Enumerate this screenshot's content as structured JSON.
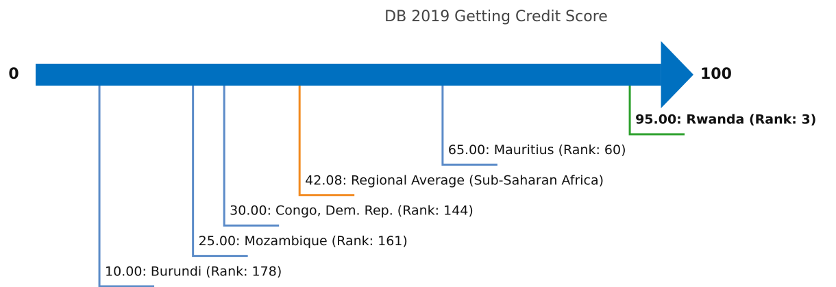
{
  "chart_data": {
    "type": "numberline",
    "title": "DB 2019 Getting Credit Score",
    "xlim": [
      0,
      100
    ],
    "xticks": [
      0,
      100
    ],
    "axis_color": "#0070c0",
    "values": [
      10,
      25,
      30,
      42.08,
      65,
      95
    ],
    "value_labels": [
      "10.00: Burundi (Rank: 178)",
      "25.00: Mozambique (Rank: 161)",
      "30.00: Congo, Dem. Rep. (Rank: 144)",
      "42.08: Regional Average (Sub-Saharan Africa)",
      "65.00: Mauritius (Rank: 60)",
      "95.00: Rwanda (Rank: 3)"
    ],
    "colors": [
      "#5b8bc8",
      "#5b8bc8",
      "#5b8bc8",
      "#f28a20",
      "#5b8bc8",
      "#2ca02c"
    ],
    "font_weights": [
      "normal",
      "normal",
      "normal",
      "normal",
      "normal",
      "bold"
    ]
  }
}
